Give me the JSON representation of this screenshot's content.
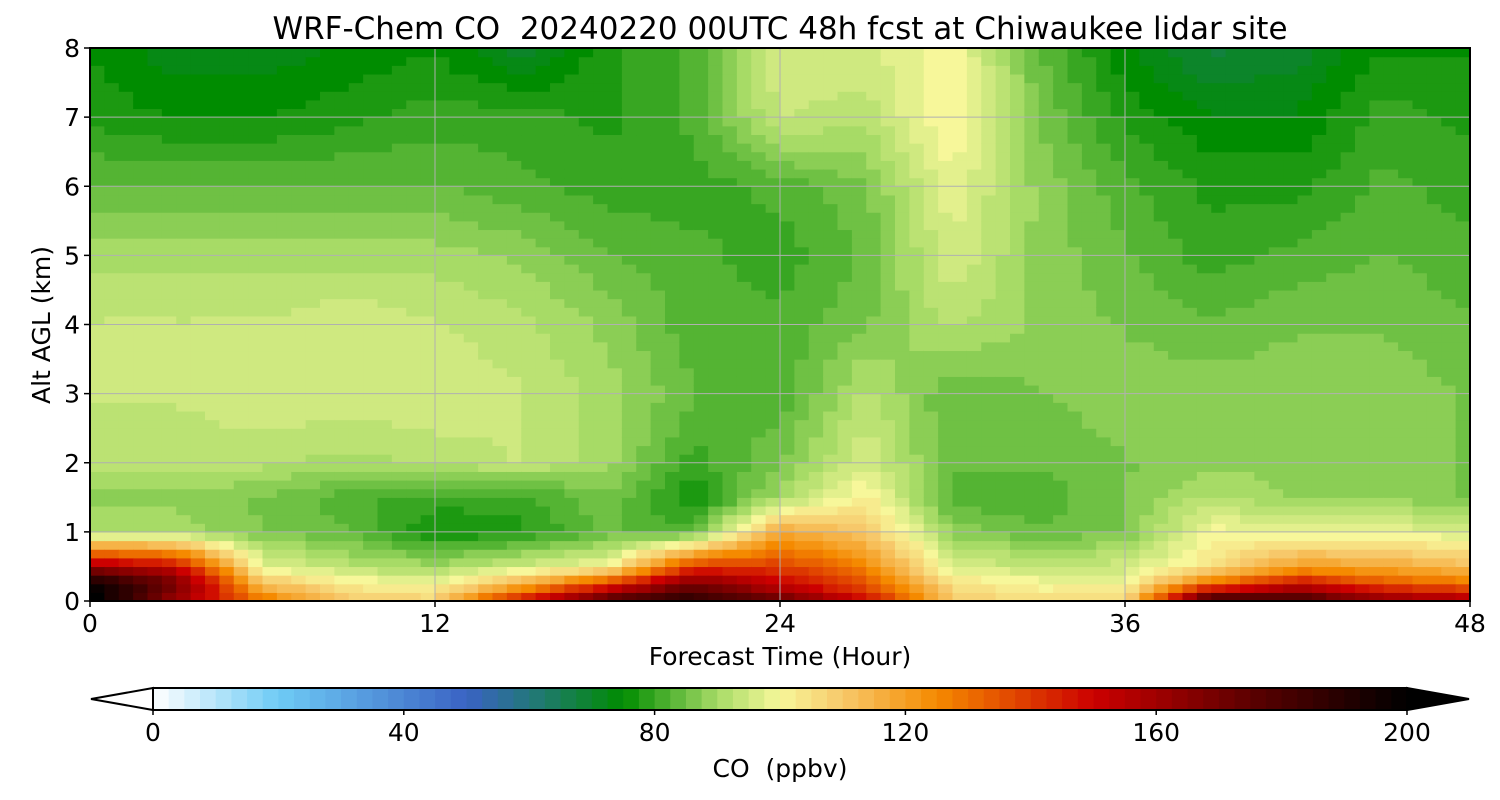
{
  "chart_data": {
    "type": "heatmap",
    "title": "WRF-Chem CO  20240220 00UTC 48h fcst at Chiwaukee lidar site",
    "xlabel": "Forecast Time (Hour)",
    "ylabel": "Alt AGL (km)",
    "xlim": [
      0,
      48
    ],
    "ylim": [
      0,
      8
    ],
    "xticks": [
      "0",
      "12",
      "24",
      "36",
      "48"
    ],
    "yticks": [
      "0",
      "1",
      "2",
      "3",
      "4",
      "5",
      "6",
      "7",
      "8"
    ],
    "grid": true,
    "colorbar": {
      "label": "CO  (ppbv)",
      "range": [
        0,
        200
      ],
      "ticks": [
        "0",
        "40",
        "80",
        "120",
        "160",
        "200"
      ],
      "extend": "both",
      "stops": [
        {
          "v": 0,
          "c": "#ffffff"
        },
        {
          "v": 20,
          "c": "#6ecbf5"
        },
        {
          "v": 50,
          "c": "#3a63c4"
        },
        {
          "v": 62,
          "c": "#1f7a6e"
        },
        {
          "v": 75,
          "c": "#008c00"
        },
        {
          "v": 90,
          "c": "#a7db66"
        },
        {
          "v": 100,
          "c": "#f7f79a"
        },
        {
          "v": 110,
          "c": "#f7c86a"
        },
        {
          "v": 125,
          "c": "#f58a00"
        },
        {
          "v": 150,
          "c": "#cc0000"
        },
        {
          "v": 175,
          "c": "#5c0000"
        },
        {
          "v": 200,
          "c": "#000000"
        }
      ]
    },
    "x_hours": [
      0,
      3,
      6,
      9,
      12,
      15,
      18,
      21,
      24,
      27,
      30,
      33,
      36,
      39,
      42,
      45,
      48
    ],
    "y_km": [
      0,
      0.25,
      0.5,
      1,
      1.5,
      2,
      3,
      4,
      5,
      6,
      7,
      8
    ],
    "z_ppbv": [
      [
        205,
        160,
        130,
        110,
        108,
        150,
        180,
        190,
        175,
        150,
        110,
        105,
        105,
        190,
        185,
        165,
        160
      ],
      [
        200,
        170,
        112,
        102,
        100,
        115,
        140,
        170,
        150,
        135,
        105,
        100,
        100,
        130,
        150,
        135,
        130
      ],
      [
        160,
        150,
        98,
        92,
        90,
        95,
        100,
        140,
        140,
        125,
        96,
        94,
        95,
        104,
        120,
        118,
        112
      ],
      [
        90,
        90,
        86,
        84,
        76,
        78,
        84,
        82,
        118,
        110,
        88,
        84,
        86,
        100,
        98,
        98,
        96
      ],
      [
        88,
        88,
        86,
        82,
        80,
        80,
        86,
        76,
        90,
        102,
        82,
        82,
        86,
        92,
        88,
        88,
        86
      ],
      [
        92,
        92,
        92,
        90,
        92,
        94,
        90,
        80,
        86,
        96,
        84,
        84,
        86,
        88,
        88,
        88,
        86
      ],
      [
        94,
        94,
        96,
        96,
        96,
        94,
        90,
        84,
        82,
        92,
        84,
        86,
        88,
        88,
        88,
        88,
        86
      ],
      [
        94,
        94,
        94,
        96,
        94,
        92,
        88,
        82,
        82,
        86,
        92,
        88,
        86,
        84,
        86,
        86,
        84
      ],
      [
        90,
        90,
        90,
        90,
        90,
        88,
        84,
        82,
        80,
        84,
        96,
        88,
        84,
        80,
        82,
        84,
        82
      ],
      [
        84,
        84,
        84,
        84,
        84,
        82,
        80,
        80,
        82,
        86,
        98,
        88,
        82,
        78,
        78,
        82,
        80
      ],
      [
        78,
        76,
        76,
        78,
        80,
        80,
        78,
        82,
        94,
        92,
        102,
        86,
        78,
        74,
        74,
        80,
        78
      ],
      [
        76,
        72,
        72,
        74,
        76,
        70,
        78,
        82,
        96,
        96,
        100,
        84,
        74,
        68,
        70,
        76,
        76
      ]
    ]
  }
}
